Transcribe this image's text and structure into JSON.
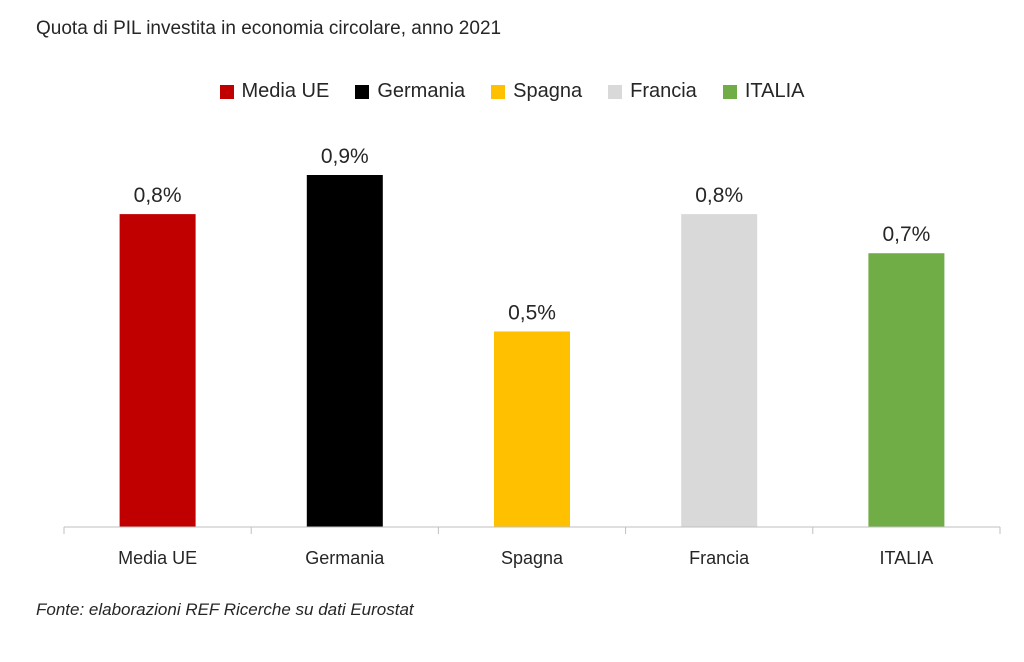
{
  "chart_data": {
    "type": "bar",
    "title": "Quota di PIL investita in economia circolare, anno 2021",
    "categories": [
      "Media UE",
      "Germania",
      "Spagna",
      "Francia",
      "ITALIA"
    ],
    "values": [
      0.8,
      0.9,
      0.5,
      0.8,
      0.7
    ],
    "data_labels": [
      "0,8%",
      "0,9%",
      "0,5%",
      "0,8%",
      "0,7%"
    ],
    "colors": [
      "#c00000",
      "#000000",
      "#ffc000",
      "#d9d9d9",
      "#70ad47"
    ],
    "legend": [
      "Media UE",
      "Germania",
      "Spagna",
      "Francia",
      "ITALIA"
    ],
    "legend_position": "top",
    "ylim": [
      0,
      0.9
    ],
    "grid": false,
    "xlabel": "",
    "ylabel": ""
  },
  "source_note": "Fonte: elaborazioni REF Ricerche su dati Eurostat"
}
